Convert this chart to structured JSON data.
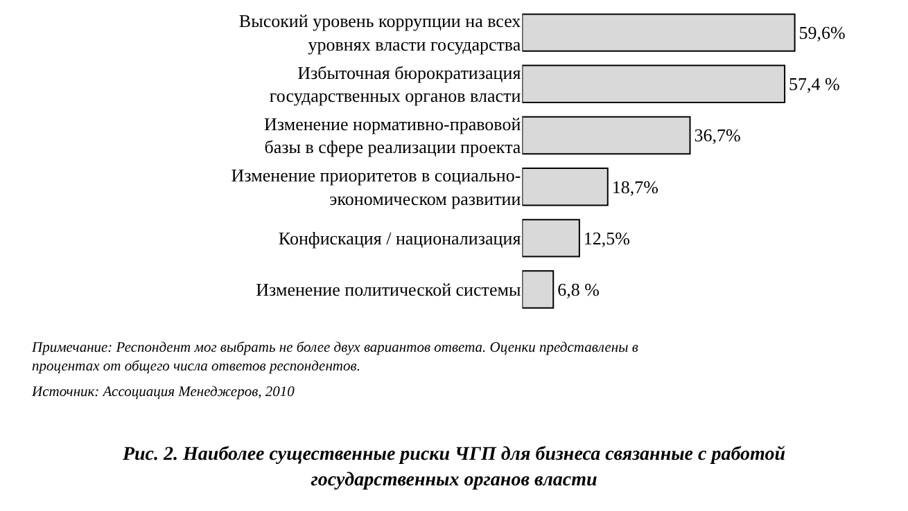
{
  "chart_data": {
    "type": "bar",
    "orientation": "horizontal",
    "title": "Рис. 2. Наиболее существенные риски ЧГП для бизнеса связанные с работой\nгосударственных органов власти",
    "categories": [
      "Высокий уровень коррупции на всех\nуровнях власти государства",
      "Избыточная бюрократизация\nгосударственных органов власти",
      "Изменение нормативно-правовой\nбазы в сфере реализации проекта",
      "Изменение приоритетов в социально-\nэкономическом развитии",
      "Конфискация / национализация",
      "Изменение политической системы"
    ],
    "values": [
      59.6,
      57.4,
      36.7,
      18.7,
      12.5,
      6.8
    ],
    "value_labels": [
      "59,6%",
      "57,4 %",
      "36,7%",
      "18,7%",
      "12,5%",
      "6,8 %"
    ],
    "color": "#d9d9d9",
    "annotations": [
      "Примечание: Респондент мог выбрать не более двух вариантов ответа. Оценки представлены в\nпроцентах от общего числа ответов респондентов.",
      "Источник: Ассоциация Менеджеров, 2010"
    ]
  }
}
